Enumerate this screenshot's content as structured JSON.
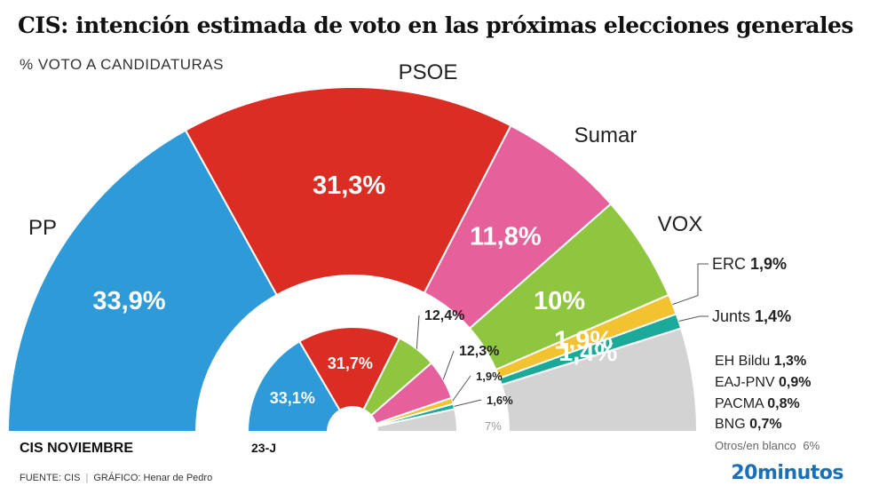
{
  "title": "CIS: intención estimada de voto en las próximas elecciones generales",
  "subtitle": "% VOTO A CANDIDATURAS",
  "source": {
    "fuente": "FUENTE: CIS",
    "separator": "|",
    "grafico": "GRÁFICO: Henar de Pedro"
  },
  "logo": "20minutos",
  "chart_data": {
    "type": "pie",
    "variant": "double-semicircle",
    "outer_label": "CIS NOVIEMBRE",
    "inner_label": "23-J",
    "series": [
      {
        "name": "CIS NOVIEMBRE",
        "slices": [
          {
            "party": "PP",
            "value": 33.9,
            "label": "33,9%",
            "color": "#2e9ad8"
          },
          {
            "party": "PSOE",
            "value": 31.3,
            "label": "31,3%",
            "color": "#dc2d24"
          },
          {
            "party": "Sumar",
            "value": 11.8,
            "label": "11,8%",
            "color": "#e6609b"
          },
          {
            "party": "VOX",
            "value": 10.0,
            "label": "10%",
            "color": "#8ec63f"
          },
          {
            "party": "ERC",
            "value": 1.9,
            "label": "1,9%",
            "color": "#f2c230"
          },
          {
            "party": "Junts",
            "value": 1.4,
            "label": "1,4%",
            "color": "#1ba99a"
          },
          {
            "party": "Otros",
            "value": 9.7,
            "label": "",
            "color": "#d3d3d3"
          }
        ]
      },
      {
        "name": "23-J",
        "slices": [
          {
            "party": "PP",
            "value": 33.1,
            "label": "33,1%",
            "color": "#2e9ad8"
          },
          {
            "party": "PSOE",
            "value": 31.7,
            "label": "31,7%",
            "color": "#dc2d24"
          },
          {
            "party": "VOX",
            "value": 12.4,
            "label": "12,4%",
            "color": "#8ec63f"
          },
          {
            "party": "Sumar",
            "value": 12.3,
            "label": "12,3%",
            "color": "#e6609b"
          },
          {
            "party": "ERC",
            "value": 1.9,
            "label": "1,9%",
            "color": "#f2c230"
          },
          {
            "party": "Junts",
            "value": 1.6,
            "label": "1,6%",
            "color": "#1ba99a"
          },
          {
            "party": "Otros",
            "value": 7.0,
            "label": "7%",
            "color": "#d3d3d3"
          }
        ]
      }
    ],
    "party_labels": {
      "PP": "PP",
      "PSOE": "PSOE",
      "Sumar": "Sumar",
      "VOX": "VOX"
    },
    "legend": [
      {
        "name": "ERC",
        "value": "1,9%"
      },
      {
        "name": "Junts",
        "value": "1,4%"
      },
      {
        "name": "EH Bildu",
        "value": "1,3%"
      },
      {
        "name": "EAJ-PNV",
        "value": "0,9%"
      },
      {
        "name": "PACMA",
        "value": "0,8%"
      },
      {
        "name": "BNG",
        "value": "0,7%"
      },
      {
        "name": "Otros/en blanco",
        "value": "6%"
      }
    ]
  }
}
